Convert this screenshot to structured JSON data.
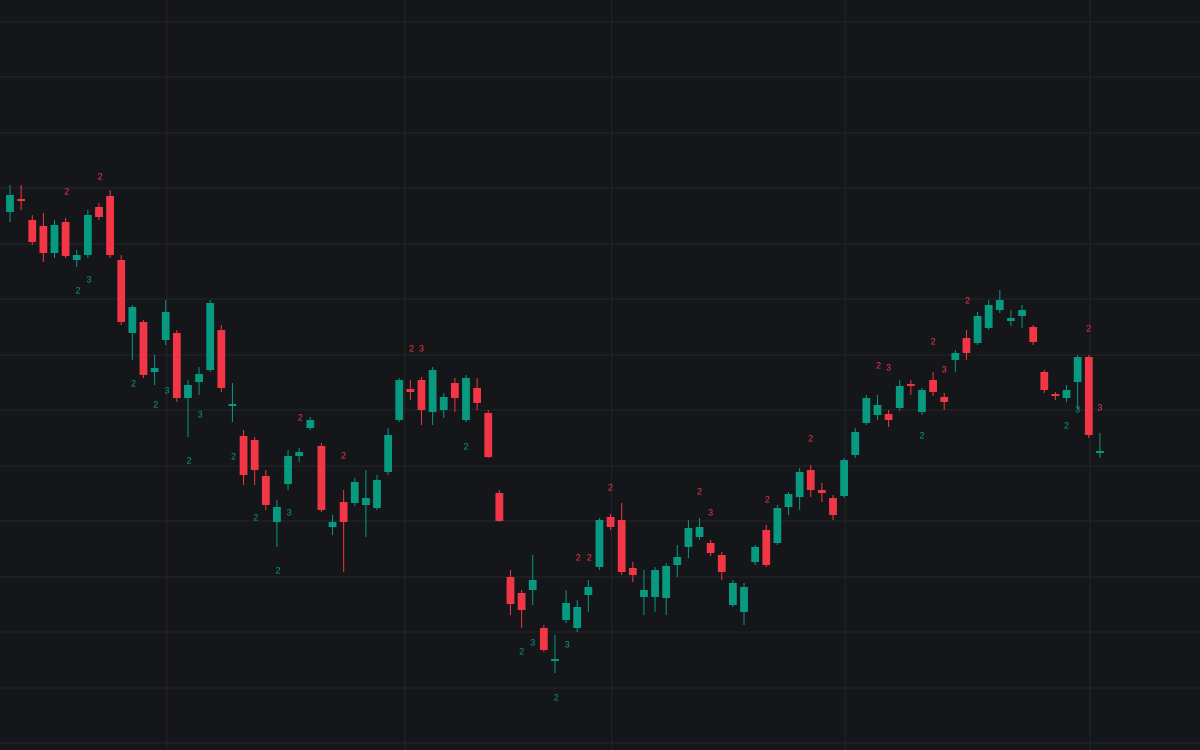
{
  "chart_data": {
    "type": "candlestick",
    "up_color": "#089981",
    "down_color": "#f23645",
    "grid": true,
    "xlim": [
      -0.9,
      107
    ],
    "ylim": [
      0,
      750
    ],
    "xticks": [
      14.1,
      35.5,
      54.1,
      75.1,
      97.1
    ],
    "yticks": [
      7,
      62,
      118,
      173,
      229,
      284,
      340,
      395,
      451,
      506,
      562,
      617,
      673,
      728
    ],
    "x": [
      0,
      1,
      2,
      3,
      4,
      5,
      6,
      7,
      8,
      9,
      10,
      11,
      12,
      13,
      14,
      15,
      16,
      17,
      18,
      19,
      20,
      21,
      22,
      23,
      24,
      25,
      26,
      27,
      28,
      29,
      30,
      31,
      32,
      33,
      34,
      35,
      36,
      37,
      38,
      39,
      40,
      41,
      42,
      43,
      44,
      45,
      46,
      47,
      48,
      49,
      50,
      51,
      52,
      53,
      54,
      55,
      56,
      57,
      58,
      59,
      60,
      61,
      62,
      63,
      64,
      65,
      66,
      67,
      68,
      69,
      70,
      71,
      72,
      73,
      74,
      75,
      76,
      77,
      78,
      79,
      80,
      81,
      82,
      83,
      84,
      85,
      86,
      87,
      88,
      89,
      90,
      91,
      92,
      93,
      94,
      95,
      96,
      97,
      98
    ],
    "open": [
      538,
      551,
      530,
      524,
      497,
      528,
      490,
      495,
      543,
      554,
      490,
      417,
      428,
      378,
      410,
      417,
      352,
      368,
      380,
      420,
      344,
      314,
      310,
      274,
      228,
      266,
      294,
      322,
      304,
      223,
      248,
      247,
      245,
      242,
      278,
      330,
      361,
      370,
      338,
      340,
      367,
      330,
      362,
      337,
      257,
      173,
      157,
      160,
      122,
      89,
      130,
      122,
      155,
      183,
      233,
      230,
      182,
      153,
      153,
      152,
      185,
      203,
      213,
      207,
      195,
      145,
      138,
      188,
      220,
      207,
      243,
      253,
      280,
      260,
      252,
      254,
      295,
      327,
      335,
      336,
      342,
      366,
      338,
      370,
      353,
      390,
      412,
      407,
      422,
      440,
      429,
      434,
      423,
      378,
      356,
      352,
      368,
      393,
      297
    ],
    "high": [
      565,
      565,
      535,
      537,
      530,
      532,
      500,
      540,
      547,
      560,
      495,
      445,
      430,
      395,
      450,
      420,
      370,
      383,
      450,
      425,
      367,
      320,
      313,
      280,
      250,
      300,
      302,
      333,
      307,
      235,
      260,
      272,
      280,
      275,
      322,
      372,
      370,
      373,
      383,
      357,
      372,
      375,
      372,
      340,
      260,
      180,
      160,
      195,
      125,
      115,
      160,
      150,
      170,
      232,
      236,
      247,
      188,
      180,
      183,
      187,
      205,
      230,
      232,
      210,
      198,
      170,
      167,
      205,
      225,
      245,
      258,
      282,
      285,
      267,
      255,
      292,
      322,
      355,
      355,
      340,
      370,
      370,
      362,
      378,
      357,
      400,
      420,
      438,
      450,
      460,
      440,
      445,
      425,
      380,
      358,
      365,
      395,
      395,
      317
    ],
    "low": [
      528,
      540,
      505,
      488,
      492,
      492,
      483,
      492,
      530,
      492,
      425,
      390,
      372,
      365,
      405,
      348,
      313,
      355,
      378,
      358,
      328,
      265,
      265,
      240,
      203,
      260,
      288,
      320,
      238,
      215,
      178,
      244,
      213,
      240,
      275,
      328,
      350,
      325,
      325,
      332,
      338,
      328,
      340,
      292,
      228,
      135,
      122,
      145,
      98,
      77,
      127,
      118,
      138,
      180,
      220,
      175,
      168,
      135,
      138,
      135,
      173,
      192,
      210,
      194,
      170,
      143,
      125,
      185,
      183,
      205,
      235,
      240,
      253,
      248,
      230,
      252,
      292,
      325,
      330,
      323,
      339,
      355,
      335,
      354,
      340,
      378,
      390,
      405,
      420,
      437,
      424,
      422,
      405,
      357,
      350,
      348,
      340,
      312,
      292
    ],
    "close": [
      555,
      549,
      508,
      497,
      525,
      494,
      495,
      535,
      533,
      495,
      428,
      443,
      375,
      382,
      438,
      352,
      365,
      376,
      447,
      362,
      346,
      275,
      280,
      245,
      243,
      294,
      298,
      330,
      240,
      228,
      228,
      268,
      252,
      270,
      315,
      370,
      358,
      340,
      380,
      353,
      352,
      372,
      347,
      293,
      229,
      146,
      140,
      170,
      100,
      91,
      147,
      143,
      163,
      230,
      223,
      178,
      175,
      160,
      180,
      184,
      193,
      222,
      223,
      197,
      178,
      167,
      163,
      203,
      185,
      242,
      256,
      278,
      260,
      257,
      235,
      290,
      318,
      352,
      345,
      330,
      364,
      364,
      360,
      358,
      348,
      397,
      397,
      434,
      445,
      450,
      432,
      440,
      408,
      360,
      354,
      360,
      393,
      315,
      299
    ],
    "annotations": [
      {
        "text": "2",
        "x": 5.1,
        "y": 558,
        "color": "#f23645"
      },
      {
        "text": "2",
        "x": 8.1,
        "y": 573,
        "color": "#f23645"
      },
      {
        "text": "2",
        "x": 36.1,
        "y": 401,
        "color": "#f23645"
      },
      {
        "text": "3",
        "x": 37.0,
        "y": 401,
        "color": "#f23645"
      },
      {
        "text": "2",
        "x": 26.1,
        "y": 332,
        "color": "#f23645"
      },
      {
        "text": "2",
        "x": 30.0,
        "y": 294,
        "color": "#f23645"
      },
      {
        "text": "2",
        "x": 54.0,
        "y": 262,
        "color": "#f23645"
      },
      {
        "text": "2",
        "x": 51.1,
        "y": 192,
        "color": "#f23645"
      },
      {
        "text": "2",
        "x": 52.1,
        "y": 192,
        "color": "#f23645"
      },
      {
        "text": "2",
        "x": 62.0,
        "y": 258,
        "color": "#f23645"
      },
      {
        "text": "3",
        "x": 63.0,
        "y": 237,
        "color": "#f23645"
      },
      {
        "text": "2",
        "x": 68.1,
        "y": 250,
        "color": "#f23645"
      },
      {
        "text": "2",
        "x": 72.0,
        "y": 311,
        "color": "#f23645"
      },
      {
        "text": "2",
        "x": 78.1,
        "y": 384,
        "color": "#f23645"
      },
      {
        "text": "3",
        "x": 79.0,
        "y": 382,
        "color": "#f23645"
      },
      {
        "text": "2",
        "x": 83.0,
        "y": 408,
        "color": "#f23645"
      },
      {
        "text": "3",
        "x": 84.0,
        "y": 380,
        "color": "#f23645"
      },
      {
        "text": "2",
        "x": 86.1,
        "y": 449,
        "color": "#f23645"
      },
      {
        "text": "2",
        "x": 97.0,
        "y": 421,
        "color": "#f23645"
      },
      {
        "text": "3",
        "x": 98.0,
        "y": 342,
        "color": "#f23645"
      },
      {
        "text": "2",
        "x": 6.1,
        "y": 459,
        "color": "#089981"
      },
      {
        "text": "3",
        "x": 7.1,
        "y": 470,
        "color": "#089981"
      },
      {
        "text": "2",
        "x": 11.1,
        "y": 366,
        "color": "#089981"
      },
      {
        "text": "2",
        "x": 13.1,
        "y": 345,
        "color": "#089981"
      },
      {
        "text": "3",
        "x": 14.1,
        "y": 359,
        "color": "#089981"
      },
      {
        "text": "2",
        "x": 16.1,
        "y": 289,
        "color": "#089981"
      },
      {
        "text": "3",
        "x": 17.1,
        "y": 335,
        "color": "#089981"
      },
      {
        "text": "2",
        "x": 20.1,
        "y": 293,
        "color": "#089981"
      },
      {
        "text": "2",
        "x": 22.1,
        "y": 232,
        "color": "#089981"
      },
      {
        "text": "2",
        "x": 24.1,
        "y": 179,
        "color": "#089981"
      },
      {
        "text": "3",
        "x": 25.1,
        "y": 237,
        "color": "#089981"
      },
      {
        "text": "2",
        "x": 41.0,
        "y": 303,
        "color": "#089981"
      },
      {
        "text": "2",
        "x": 46.0,
        "y": 98,
        "color": "#089981"
      },
      {
        "text": "3",
        "x": 47.0,
        "y": 107,
        "color": "#089981"
      },
      {
        "text": "2",
        "x": 49.1,
        "y": 52,
        "color": "#089981"
      },
      {
        "text": "3",
        "x": 50.1,
        "y": 105,
        "color": "#089981"
      },
      {
        "text": "2",
        "x": 82.0,
        "y": 314,
        "color": "#089981"
      },
      {
        "text": "2",
        "x": 95.0,
        "y": 324,
        "color": "#089981"
      },
      {
        "text": "3",
        "x": 96.0,
        "y": 340,
        "color": "#089981"
      }
    ]
  }
}
